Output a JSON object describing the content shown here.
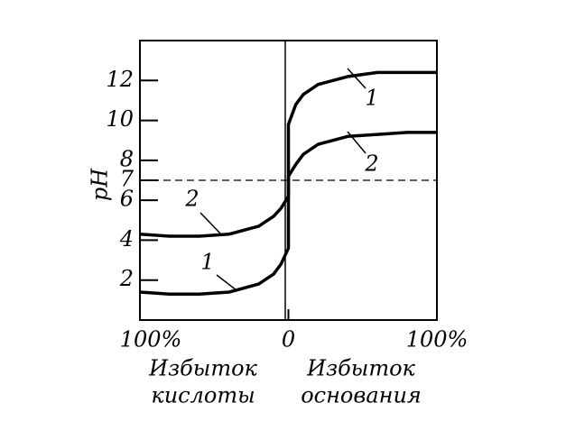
{
  "chart_data": {
    "type": "line",
    "y_label": "pH",
    "x": [
      -100,
      -80,
      -60,
      -40,
      -20,
      -10,
      -5,
      0,
      0,
      5,
      10,
      20,
      40,
      60,
      80,
      100
    ],
    "series": [
      {
        "name": "1",
        "color": "#000000",
        "values": [
          1.4,
          1.3,
          1.3,
          1.4,
          1.8,
          2.3,
          2.8,
          3.6,
          9.8,
          10.8,
          11.3,
          11.8,
          12.2,
          12.4,
          12.4,
          12.4
        ]
      },
      {
        "name": "2",
        "color": "#000000",
        "values": [
          4.3,
          4.2,
          4.2,
          4.3,
          4.7,
          5.2,
          5.6,
          6.2,
          7.2,
          7.8,
          8.3,
          8.8,
          9.2,
          9.3,
          9.4,
          9.4
        ]
      }
    ],
    "xlim": [
      -100,
      100
    ],
    "xticks": [
      {
        "value": -100,
        "label": "100%"
      },
      0,
      {
        "value": 100,
        "label": "100%"
      }
    ],
    "ylim": [
      0,
      14
    ],
    "yticks": [
      2,
      4,
      6,
      7,
      8,
      10,
      12
    ],
    "reference_line": 7,
    "acid_label": [
      "Избыток",
      "кислоты"
    ],
    "base_label": [
      "Избыток",
      "основания"
    ]
  }
}
